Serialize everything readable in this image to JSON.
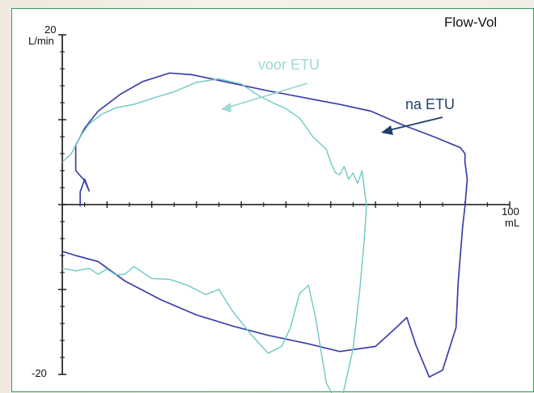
{
  "chart_data": {
    "type": "line",
    "title": "Flow-Vol",
    "x_unit": "mL",
    "y_unit": "L/min",
    "xlim": [
      0,
      100
    ],
    "ylim": [
      -20,
      20
    ],
    "x_tick_labels": [
      "100"
    ],
    "y_tick_labels": [
      "20",
      "-20"
    ],
    "annotations": [
      {
        "text": "voor ETU",
        "color": "#9ed9d3"
      },
      {
        "text": "na ETU",
        "color": "#1f3f6e"
      }
    ],
    "series": [
      {
        "label": "na ETU",
        "color": "#3b3fa8",
        "points": [
          [
            4,
            -0.2
          ],
          [
            4,
            1.5
          ],
          [
            5,
            3
          ],
          [
            6,
            1.6
          ],
          [
            5,
            2.8
          ],
          [
            3,
            4
          ],
          [
            3,
            7
          ],
          [
            5,
            9
          ],
          [
            8,
            11
          ],
          [
            13,
            13
          ],
          [
            18,
            14.5
          ],
          [
            24,
            15.5
          ],
          [
            29,
            15.3
          ],
          [
            37,
            14.4
          ],
          [
            46,
            13.4
          ],
          [
            54,
            12.6
          ],
          [
            62,
            11.8
          ],
          [
            69,
            11
          ],
          [
            76,
            9.4
          ],
          [
            83,
            8
          ],
          [
            89,
            6.7
          ],
          [
            90,
            6
          ],
          [
            90,
            5
          ],
          [
            90.5,
            3
          ],
          [
            90,
            -0.2
          ],
          [
            89.5,
            -2.5
          ],
          [
            88.5,
            -9
          ],
          [
            88,
            -14.5
          ],
          [
            85,
            -19.5
          ],
          [
            82,
            -20.3
          ],
          [
            79,
            -16.5
          ],
          [
            77,
            -13.3
          ],
          [
            74,
            -14.8
          ],
          [
            70,
            -16.7
          ],
          [
            62,
            -17.3
          ],
          [
            55,
            -16.4
          ],
          [
            46,
            -15.4
          ],
          [
            38,
            -14.3
          ],
          [
            30,
            -13
          ],
          [
            22,
            -11.2
          ],
          [
            14,
            -9
          ],
          [
            8,
            -6.7
          ],
          [
            3,
            -6
          ],
          [
            0,
            -5.5
          ]
        ]
      },
      {
        "label": "voor ETU",
        "color": "#6cc9c3",
        "points": [
          [
            0,
            5
          ],
          [
            2,
            6
          ],
          [
            4,
            8
          ],
          [
            6,
            9.5
          ],
          [
            9,
            10.7
          ],
          [
            12,
            11.4
          ],
          [
            16,
            11.8
          ],
          [
            20,
            12.5
          ],
          [
            25,
            13.3
          ],
          [
            30,
            14.4
          ],
          [
            35,
            14.8
          ],
          [
            40,
            14.2
          ],
          [
            44,
            12.8
          ],
          [
            47,
            12
          ],
          [
            50,
            11.3
          ],
          [
            53,
            10.2
          ],
          [
            56,
            8
          ],
          [
            59,
            6.5
          ],
          [
            60,
            5
          ],
          [
            61,
            3.8
          ],
          [
            62,
            3.5
          ],
          [
            63,
            4.5
          ],
          [
            64,
            3
          ],
          [
            65,
            3.7
          ],
          [
            66,
            2.5
          ],
          [
            67,
            4
          ],
          [
            68,
            -0.2
          ],
          [
            67.5,
            -4
          ],
          [
            66.5,
            -10
          ],
          [
            65,
            -17
          ],
          [
            62,
            -24
          ],
          [
            59,
            -21
          ],
          [
            56.5,
            -13
          ],
          [
            55,
            -9.5
          ],
          [
            53,
            -10.5
          ],
          [
            51,
            -14.5
          ],
          [
            49,
            -16.7
          ],
          [
            46,
            -17.5
          ],
          [
            42,
            -15.2
          ],
          [
            38,
            -12.5
          ],
          [
            35,
            -10
          ],
          [
            32,
            -10.6
          ],
          [
            28,
            -9.5
          ],
          [
            24,
            -8.8
          ],
          [
            20,
            -8.7
          ],
          [
            18,
            -8
          ],
          [
            16,
            -7.3
          ],
          [
            14,
            -8.2
          ],
          [
            12,
            -8.3
          ],
          [
            10,
            -7.6
          ],
          [
            8,
            -8.2
          ],
          [
            6,
            -7.5
          ],
          [
            3,
            -7.8
          ],
          [
            0,
            -7.5
          ]
        ]
      }
    ]
  }
}
